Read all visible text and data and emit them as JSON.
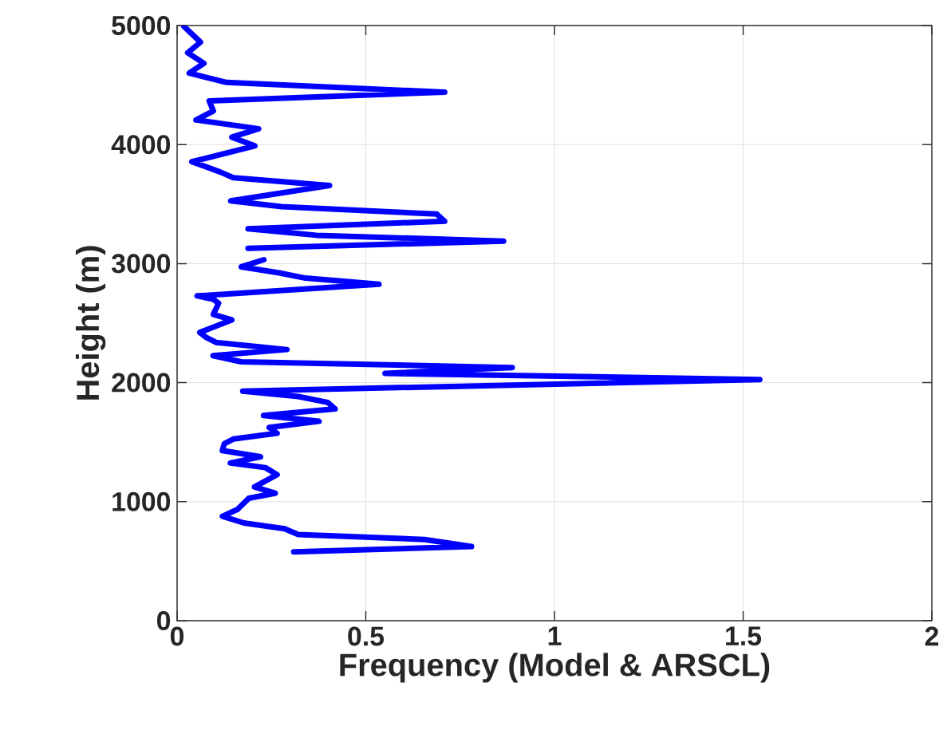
{
  "chart_data": {
    "type": "line",
    "xlabel": "Frequency (Model & ARSCL)",
    "ylabel": "Height (m)",
    "xlim": [
      0,
      2
    ],
    "ylim": [
      0,
      5000
    ],
    "xticks": [
      0,
      0.5,
      1,
      1.5,
      2
    ],
    "yticks": [
      0,
      1000,
      2000,
      3000,
      4000,
      5000
    ],
    "grid": true,
    "series": [
      {
        "color": "#0000ff",
        "x": [
          0.309,
          0.78,
          0.656,
          0.321,
          0.285,
          0.177,
          0.12,
          0.16,
          0.19,
          0.26,
          0.205,
          0.265,
          0.234,
          0.141,
          0.221,
          0.12,
          0.125,
          0.149,
          0.265,
          0.244,
          0.376,
          0.229,
          0.419,
          0.399,
          0.321,
          0.174,
          1.544,
          0.551,
          0.888,
          0.17,
          0.095,
          0.291,
          0.103,
          0.078,
          0.06,
          0.145,
          0.096,
          0.11,
          0.096,
          0.053,
          0.535,
          0.34,
          0.27,
          0.17,
          0.23,
          null,
          0.188,
          0.865,
          0.369,
          0.188,
          0.709,
          0.688,
          0.277,
          0.142,
          0.404,
          0.149,
          0.113,
          0.039,
          0.206,
          0.145,
          0.216,
          0.05,
          0.096,
          0.085,
          0.709,
          0.131,
          0.032,
          0.071,
          0.028,
          0.062,
          0.018
        ],
        "values": [
          578,
          623,
          682,
          724,
          773,
          821,
          877,
          935,
          1029,
          1071,
          1123,
          1227,
          1286,
          1325,
          1377,
          1429,
          1487,
          1526,
          1575,
          1623,
          1675,
          1724,
          1779,
          1834,
          1883,
          1929,
          2026,
          2078,
          2127,
          2175,
          2227,
          2278,
          2338,
          2378,
          2422,
          2527,
          2573,
          2667,
          2700,
          2729,
          2827,
          2878,
          2922,
          2973,
          3033,
          null,
          3129,
          3189,
          3238,
          3293,
          3356,
          3416,
          3478,
          3527,
          3656,
          3722,
          3771,
          3856,
          3989,
          4062,
          4133,
          4207,
          4282,
          4367,
          4440,
          4522,
          4600,
          4682,
          4771,
          4860,
          4993
        ]
      }
    ]
  }
}
